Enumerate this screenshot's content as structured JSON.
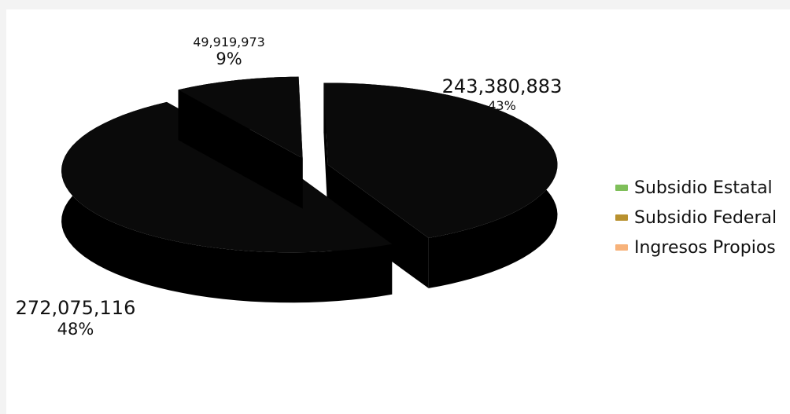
{
  "chart_data": {
    "type": "pie",
    "title": "",
    "slices": [
      {
        "name": "Subsidio Estatal",
        "value": 243380883,
        "value_label": "243,380,883",
        "percent_label": "43%",
        "color": "#7fbf5a"
      },
      {
        "name": "Subsidio Federal",
        "value": 272075116,
        "value_label": "272,075,116",
        "percent_label": "48%",
        "color": "#b8912f"
      },
      {
        "name": "Ingresos Propios",
        "value": 49919973,
        "value_label": "49,919,973",
        "percent_label": "9%",
        "color": "#f7b27a"
      }
    ],
    "exploded": true,
    "rendered_slice_fill": "#0a0a0a",
    "legend_position": "right"
  }
}
